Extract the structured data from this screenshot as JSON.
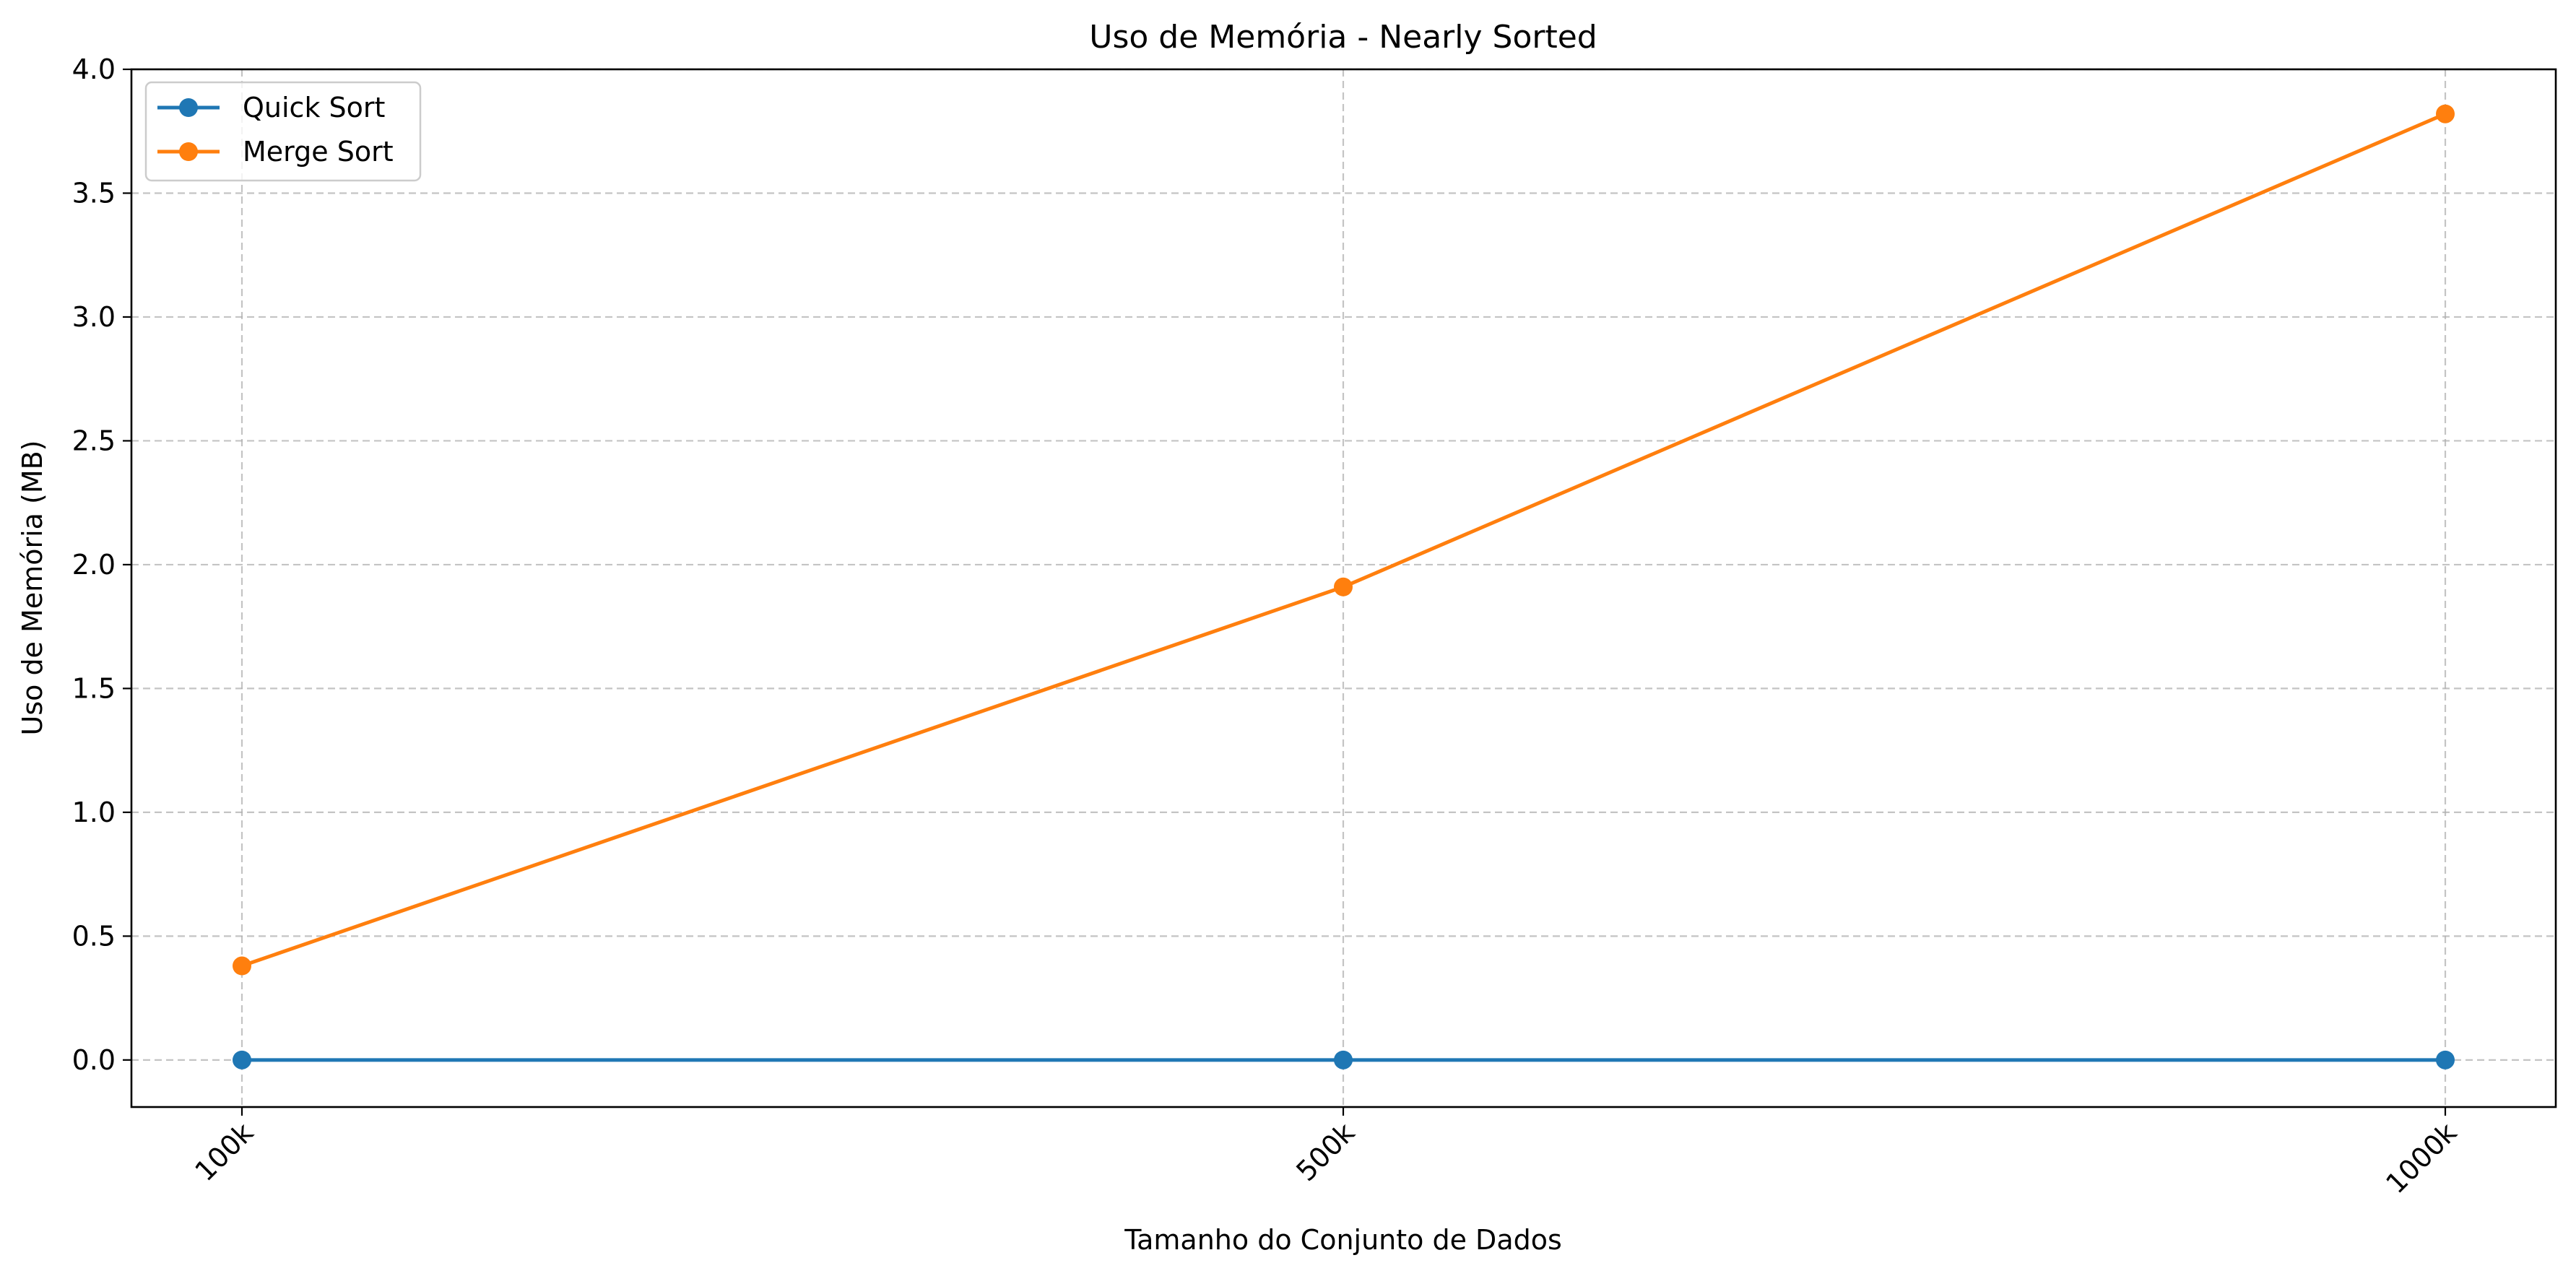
{
  "chart_data": {
    "type": "line",
    "title": "Uso de Memória - Nearly Sorted",
    "xlabel": "Tamanho do Conjunto de Dados",
    "ylabel": "Uso de Memória (MB)",
    "categories": [
      "100k",
      "500k",
      "1000k"
    ],
    "x": [
      100,
      500,
      1000
    ],
    "ylim": [
      -0.19,
      4.0
    ],
    "yticks": [
      0.0,
      0.5,
      1.0,
      1.5,
      2.0,
      2.5,
      3.0,
      3.5,
      4.0
    ],
    "ytick_labels": [
      "0.0",
      "0.5",
      "1.0",
      "1.5",
      "2.0",
      "2.5",
      "3.0",
      "3.5",
      "4.0"
    ],
    "grid": true,
    "legend_position": "top-left",
    "series": [
      {
        "name": "Quick Sort",
        "color": "#1f77b4",
        "marker": "circle",
        "values": [
          0.0,
          0.0,
          0.0
        ]
      },
      {
        "name": "Merge Sort",
        "color": "#ff7f0e",
        "marker": "circle",
        "values": [
          0.38,
          1.91,
          3.82
        ]
      }
    ]
  }
}
